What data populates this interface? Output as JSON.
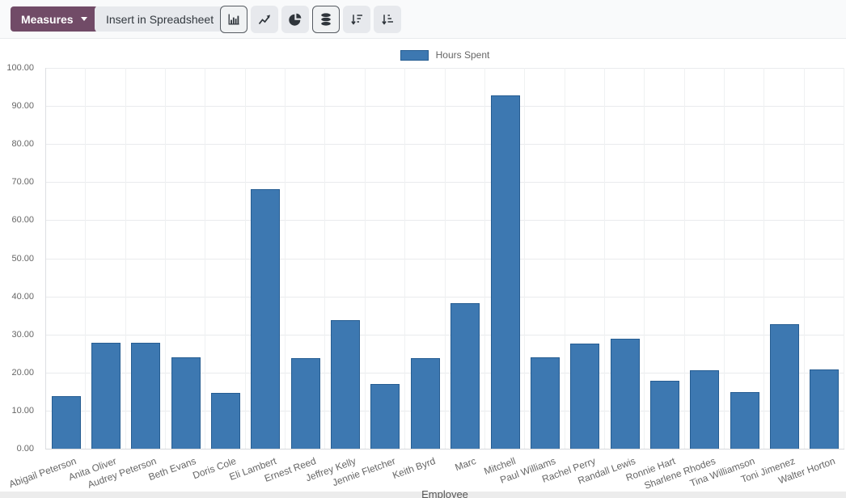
{
  "toolbar": {
    "measures": {
      "label": "Measures"
    },
    "insert_spreadsheet": {
      "label": "Insert in Spreadsheet"
    },
    "view_buttons": [
      {
        "name": "bar-chart",
        "active": true
      },
      {
        "name": "line-chart",
        "active": false
      },
      {
        "name": "pie-chart",
        "active": false
      },
      {
        "name": "stacked",
        "active": true
      },
      {
        "name": "sort-descending",
        "active": false
      },
      {
        "name": "sort-ascending",
        "active": false
      }
    ]
  },
  "chart_data": {
    "type": "bar",
    "title": "",
    "xlabel": "Employee",
    "ylabel": "",
    "ylim": [
      0,
      100
    ],
    "ytick_step": 10,
    "grid": true,
    "legend_position": "top",
    "categories": [
      "Abigail Peterson",
      "Anita Oliver",
      "Audrey Peterson",
      "Beth Evans",
      "Doris Cole",
      "Eli Lambert",
      "Ernest Reed",
      "Jeffrey Kelly",
      "Jennie Fletcher",
      "Keith Byrd",
      "Marc",
      "Mitchell",
      "Paul Williams",
      "Rachel Perry",
      "Randall Lewis",
      "Ronnie Hart",
      "Sharlene Rhodes",
      "Tina Williamson",
      "Toni Jimenez",
      "Walter Horton"
    ],
    "series": [
      {
        "name": "Hours Spent",
        "values": [
          13.8,
          27.9,
          27.8,
          23.9,
          14.6,
          68.2,
          23.8,
          33.7,
          16.9,
          23.8,
          38.2,
          92.7,
          23.9,
          27.6,
          28.9,
          17.9,
          20.6,
          14.8,
          32.6,
          20.8
        ]
      }
    ]
  },
  "colors": {
    "accent": "#714B67",
    "bar_fill": "#3d78b1",
    "bar_border": "#265d92",
    "icon": "#2f353b"
  }
}
